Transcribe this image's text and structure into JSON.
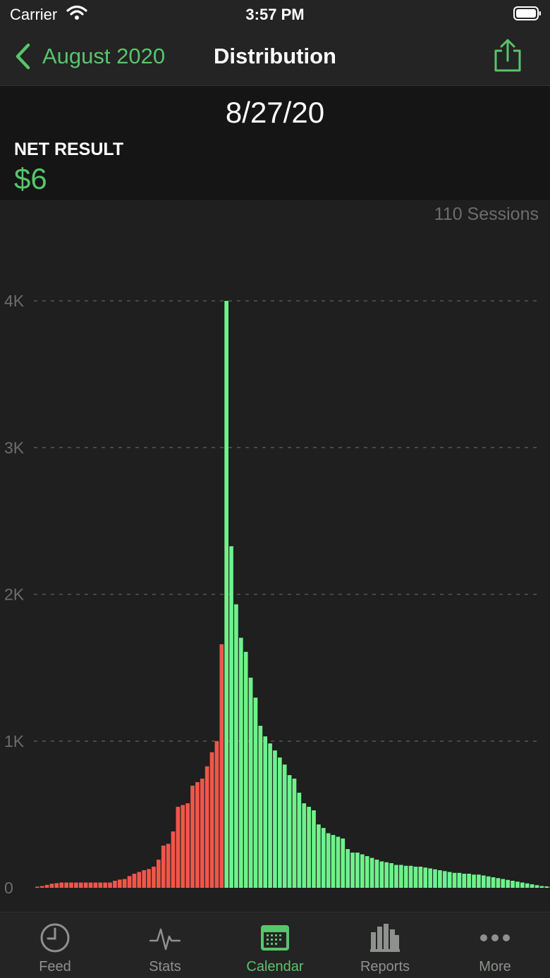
{
  "status_bar": {
    "carrier": "Carrier",
    "time": "3:57 PM"
  },
  "nav": {
    "back_label": "August 2020",
    "title": "Distribution"
  },
  "header": {
    "date": "8/27/20",
    "net_label": "NET RESULT",
    "net_value": "$6"
  },
  "sessions_label": "110 Sessions",
  "colors": {
    "accent": "#58c56c",
    "loss": "#f0564a",
    "gain": "#6ef28c"
  },
  "chart_data": {
    "type": "bar",
    "yticks": [
      "0",
      "1K",
      "2K",
      "3K",
      "4K"
    ],
    "ylim": [
      0,
      4000
    ],
    "grid": true,
    "series": [
      {
        "color": "loss",
        "values": [
          8,
          12,
          20,
          28,
          32,
          36,
          36,
          36,
          36,
          36,
          36,
          36,
          36,
          36,
          36,
          36,
          48,
          56,
          60,
          80,
          96,
          108,
          120,
          128,
          144,
          192,
          288,
          300,
          384,
          552,
          564,
          576,
          696,
          720,
          744,
          828,
          924,
          1000,
          1660
        ]
      },
      {
        "color": "gain",
        "values": [
          4000,
          2328,
          1932,
          1704,
          1608,
          1432,
          1296,
          1104,
          1032,
          984,
          936,
          888,
          840,
          768,
          744,
          648,
          576,
          552,
          528,
          432,
          408,
          372,
          360,
          348,
          336,
          264,
          240,
          240,
          228,
          216,
          204,
          192,
          180,
          174,
          168,
          156,
          156,
          150,
          150,
          144,
          144,
          138,
          132,
          126,
          120,
          114,
          108,
          102,
          102,
          96,
          96,
          90,
          90,
          84,
          78,
          72,
          66,
          60,
          54,
          48,
          42,
          36,
          30,
          24,
          18,
          12,
          10,
          8,
          8,
          6,
          4
        ]
      }
    ]
  },
  "tabs": [
    {
      "label": "Feed",
      "icon": "clock-icon"
    },
    {
      "label": "Stats",
      "icon": "pulse-icon"
    },
    {
      "label": "Calendar",
      "icon": "calendar-icon",
      "active": true
    },
    {
      "label": "Reports",
      "icon": "bar-chart-icon"
    },
    {
      "label": "More",
      "icon": "more-icon"
    }
  ]
}
